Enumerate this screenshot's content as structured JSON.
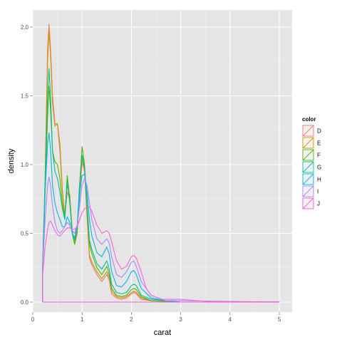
{
  "chart_data": {
    "type": "line",
    "title": "",
    "xlabel": "carat",
    "ylabel": "density",
    "xlim": [
      0,
      5
    ],
    "ylim": [
      0,
      2.0
    ],
    "x_ticks": [
      "0",
      "1",
      "2",
      "3",
      "4",
      "5"
    ],
    "y_ticks": [
      "0.0",
      "0.5",
      "1.0",
      "1.5",
      "2.0"
    ],
    "grid": true,
    "legend_position": "right",
    "legend_title": "color",
    "series": [
      {
        "name": "D",
        "color": "#F8766D",
        "points": [
          [
            0.2,
            0.25
          ],
          [
            0.25,
            0.9
          ],
          [
            0.3,
            1.85
          ],
          [
            0.33,
            2.02
          ],
          [
            0.36,
            1.85
          ],
          [
            0.4,
            1.5
          ],
          [
            0.45,
            1.3
          ],
          [
            0.5,
            1.29
          ],
          [
            0.55,
            1.1
          ],
          [
            0.6,
            0.8
          ],
          [
            0.65,
            0.62
          ],
          [
            0.7,
            0.8
          ],
          [
            0.75,
            0.75
          ],
          [
            0.8,
            0.5
          ],
          [
            0.85,
            0.42
          ],
          [
            0.9,
            0.52
          ],
          [
            0.95,
            0.75
          ],
          [
            1.0,
            1.02
          ],
          [
            1.05,
            0.95
          ],
          [
            1.1,
            0.62
          ],
          [
            1.15,
            0.32
          ],
          [
            1.2,
            0.27
          ],
          [
            1.3,
            0.2
          ],
          [
            1.4,
            0.15
          ],
          [
            1.5,
            0.2
          ],
          [
            1.55,
            0.16
          ],
          [
            1.6,
            0.06
          ],
          [
            1.7,
            0.03
          ],
          [
            1.8,
            0.02
          ],
          [
            1.9,
            0.03
          ],
          [
            2.0,
            0.06
          ],
          [
            2.05,
            0.07
          ],
          [
            2.1,
            0.06
          ],
          [
            2.2,
            0.02
          ],
          [
            2.4,
            0.01
          ],
          [
            3.0,
            0.0
          ],
          [
            5.0,
            0.0
          ]
        ]
      },
      {
        "name": "E",
        "color": "#C49A00",
        "points": [
          [
            0.2,
            0.25
          ],
          [
            0.25,
            0.9
          ],
          [
            0.3,
            1.75
          ],
          [
            0.33,
            1.97
          ],
          [
            0.36,
            1.8
          ],
          [
            0.4,
            1.45
          ],
          [
            0.45,
            1.28
          ],
          [
            0.5,
            1.3
          ],
          [
            0.55,
            1.15
          ],
          [
            0.6,
            0.82
          ],
          [
            0.65,
            0.63
          ],
          [
            0.7,
            0.85
          ],
          [
            0.75,
            0.78
          ],
          [
            0.8,
            0.52
          ],
          [
            0.85,
            0.43
          ],
          [
            0.9,
            0.55
          ],
          [
            0.95,
            0.8
          ],
          [
            1.0,
            1.05
          ],
          [
            1.05,
            0.97
          ],
          [
            1.1,
            0.65
          ],
          [
            1.15,
            0.34
          ],
          [
            1.2,
            0.29
          ],
          [
            1.3,
            0.22
          ],
          [
            1.4,
            0.17
          ],
          [
            1.5,
            0.22
          ],
          [
            1.55,
            0.18
          ],
          [
            1.6,
            0.08
          ],
          [
            1.7,
            0.04
          ],
          [
            1.8,
            0.03
          ],
          [
            1.9,
            0.04
          ],
          [
            2.0,
            0.07
          ],
          [
            2.05,
            0.08
          ],
          [
            2.1,
            0.07
          ],
          [
            2.2,
            0.03
          ],
          [
            2.4,
            0.01
          ],
          [
            3.0,
            0.0
          ],
          [
            5.0,
            0.0
          ]
        ]
      },
      {
        "name": "F",
        "color": "#53B400",
        "points": [
          [
            0.2,
            0.25
          ],
          [
            0.25,
            0.8
          ],
          [
            0.3,
            1.35
          ],
          [
            0.33,
            1.57
          ],
          [
            0.36,
            1.4
          ],
          [
            0.4,
            1.1
          ],
          [
            0.45,
            1.02
          ],
          [
            0.5,
            1.0
          ],
          [
            0.55,
            0.9
          ],
          [
            0.6,
            0.72
          ],
          [
            0.65,
            0.62
          ],
          [
            0.7,
            0.92
          ],
          [
            0.75,
            0.75
          ],
          [
            0.8,
            0.5
          ],
          [
            0.85,
            0.42
          ],
          [
            0.9,
            0.5
          ],
          [
            0.95,
            0.85
          ],
          [
            1.0,
            1.13
          ],
          [
            1.05,
            1.0
          ],
          [
            1.1,
            0.7
          ],
          [
            1.15,
            0.42
          ],
          [
            1.2,
            0.35
          ],
          [
            1.3,
            0.25
          ],
          [
            1.4,
            0.2
          ],
          [
            1.5,
            0.26
          ],
          [
            1.55,
            0.2
          ],
          [
            1.6,
            0.1
          ],
          [
            1.7,
            0.05
          ],
          [
            1.8,
            0.04
          ],
          [
            1.9,
            0.05
          ],
          [
            2.0,
            0.09
          ],
          [
            2.05,
            0.1
          ],
          [
            2.1,
            0.09
          ],
          [
            2.2,
            0.04
          ],
          [
            2.4,
            0.01
          ],
          [
            3.0,
            0.0
          ],
          [
            5.0,
            0.0
          ]
        ]
      },
      {
        "name": "G",
        "color": "#00C094",
        "points": [
          [
            0.2,
            0.25
          ],
          [
            0.25,
            0.85
          ],
          [
            0.3,
            1.5
          ],
          [
            0.33,
            1.7
          ],
          [
            0.36,
            1.5
          ],
          [
            0.4,
            1.1
          ],
          [
            0.45,
            0.95
          ],
          [
            0.5,
            0.9
          ],
          [
            0.55,
            0.8
          ],
          [
            0.6,
            0.68
          ],
          [
            0.65,
            0.6
          ],
          [
            0.7,
            0.88
          ],
          [
            0.75,
            0.72
          ],
          [
            0.8,
            0.5
          ],
          [
            0.85,
            0.45
          ],
          [
            0.9,
            0.55
          ],
          [
            0.95,
            0.85
          ],
          [
            1.0,
            1.07
          ],
          [
            1.05,
            0.98
          ],
          [
            1.1,
            0.72
          ],
          [
            1.15,
            0.45
          ],
          [
            1.2,
            0.38
          ],
          [
            1.3,
            0.28
          ],
          [
            1.4,
            0.24
          ],
          [
            1.5,
            0.3
          ],
          [
            1.55,
            0.24
          ],
          [
            1.6,
            0.13
          ],
          [
            1.7,
            0.07
          ],
          [
            1.8,
            0.06
          ],
          [
            1.9,
            0.07
          ],
          [
            2.0,
            0.12
          ],
          [
            2.05,
            0.13
          ],
          [
            2.1,
            0.12
          ],
          [
            2.2,
            0.05
          ],
          [
            2.4,
            0.02
          ],
          [
            3.0,
            0.0
          ],
          [
            5.0,
            0.0
          ]
        ]
      },
      {
        "name": "H",
        "color": "#00B6EB",
        "points": [
          [
            0.2,
            0.25
          ],
          [
            0.25,
            0.8
          ],
          [
            0.3,
            1.15
          ],
          [
            0.33,
            1.23
          ],
          [
            0.36,
            1.12
          ],
          [
            0.4,
            0.85
          ],
          [
            0.45,
            0.72
          ],
          [
            0.5,
            0.65
          ],
          [
            0.55,
            0.6
          ],
          [
            0.6,
            0.55
          ],
          [
            0.65,
            0.55
          ],
          [
            0.7,
            0.62
          ],
          [
            0.75,
            0.58
          ],
          [
            0.8,
            0.5
          ],
          [
            0.85,
            0.47
          ],
          [
            0.9,
            0.55
          ],
          [
            0.95,
            0.78
          ],
          [
            1.0,
            0.92
          ],
          [
            1.05,
            0.93
          ],
          [
            1.1,
            0.8
          ],
          [
            1.15,
            0.6
          ],
          [
            1.2,
            0.48
          ],
          [
            1.3,
            0.36
          ],
          [
            1.4,
            0.33
          ],
          [
            1.5,
            0.4
          ],
          [
            1.55,
            0.35
          ],
          [
            1.6,
            0.22
          ],
          [
            1.7,
            0.12
          ],
          [
            1.8,
            0.11
          ],
          [
            1.9,
            0.15
          ],
          [
            2.0,
            0.22
          ],
          [
            2.05,
            0.23
          ],
          [
            2.1,
            0.2
          ],
          [
            2.2,
            0.1
          ],
          [
            2.4,
            0.03
          ],
          [
            2.7,
            0.01
          ],
          [
            3.0,
            0.0
          ],
          [
            5.0,
            0.0
          ]
        ]
      },
      {
        "name": "I",
        "color": "#A58AFF",
        "points": [
          [
            0.2,
            0.25
          ],
          [
            0.25,
            0.6
          ],
          [
            0.3,
            0.85
          ],
          [
            0.33,
            0.91
          ],
          [
            0.36,
            0.85
          ],
          [
            0.4,
            0.7
          ],
          [
            0.45,
            0.58
          ],
          [
            0.5,
            0.52
          ],
          [
            0.55,
            0.5
          ],
          [
            0.6,
            0.52
          ],
          [
            0.65,
            0.55
          ],
          [
            0.7,
            0.58
          ],
          [
            0.75,
            0.56
          ],
          [
            0.8,
            0.52
          ],
          [
            0.85,
            0.5
          ],
          [
            0.9,
            0.56
          ],
          [
            0.95,
            0.7
          ],
          [
            1.0,
            0.85
          ],
          [
            1.05,
            0.9
          ],
          [
            1.1,
            0.85
          ],
          [
            1.15,
            0.72
          ],
          [
            1.2,
            0.6
          ],
          [
            1.3,
            0.46
          ],
          [
            1.4,
            0.42
          ],
          [
            1.5,
            0.46
          ],
          [
            1.55,
            0.43
          ],
          [
            1.6,
            0.33
          ],
          [
            1.7,
            0.2
          ],
          [
            1.8,
            0.18
          ],
          [
            1.9,
            0.22
          ],
          [
            2.0,
            0.29
          ],
          [
            2.05,
            0.3
          ],
          [
            2.1,
            0.26
          ],
          [
            2.2,
            0.15
          ],
          [
            2.4,
            0.05
          ],
          [
            2.7,
            0.01
          ],
          [
            3.0,
            0.01
          ],
          [
            5.0,
            0.0
          ]
        ]
      },
      {
        "name": "J",
        "color": "#FB61D7",
        "points": [
          [
            0.2,
            0.2
          ],
          [
            0.25,
            0.4
          ],
          [
            0.3,
            0.53
          ],
          [
            0.33,
            0.58
          ],
          [
            0.36,
            0.59
          ],
          [
            0.4,
            0.56
          ],
          [
            0.45,
            0.52
          ],
          [
            0.5,
            0.49
          ],
          [
            0.55,
            0.48
          ],
          [
            0.6,
            0.5
          ],
          [
            0.65,
            0.52
          ],
          [
            0.7,
            0.54
          ],
          [
            0.75,
            0.54
          ],
          [
            0.8,
            0.53
          ],
          [
            0.85,
            0.53
          ],
          [
            0.9,
            0.55
          ],
          [
            0.95,
            0.6
          ],
          [
            1.0,
            0.65
          ],
          [
            1.05,
            0.68
          ],
          [
            1.1,
            0.69
          ],
          [
            1.15,
            0.69
          ],
          [
            1.2,
            0.66
          ],
          [
            1.3,
            0.56
          ],
          [
            1.4,
            0.5
          ],
          [
            1.5,
            0.52
          ],
          [
            1.55,
            0.5
          ],
          [
            1.6,
            0.44
          ],
          [
            1.7,
            0.3
          ],
          [
            1.8,
            0.24
          ],
          [
            1.9,
            0.26
          ],
          [
            2.0,
            0.33
          ],
          [
            2.05,
            0.34
          ],
          [
            2.1,
            0.32
          ],
          [
            2.2,
            0.22
          ],
          [
            2.3,
            0.1
          ],
          [
            2.4,
            0.05
          ],
          [
            2.6,
            0.02
          ],
          [
            3.0,
            0.02
          ],
          [
            3.5,
            0.005
          ],
          [
            4.0,
            0.003
          ],
          [
            5.0,
            0.002
          ]
        ]
      }
    ]
  }
}
